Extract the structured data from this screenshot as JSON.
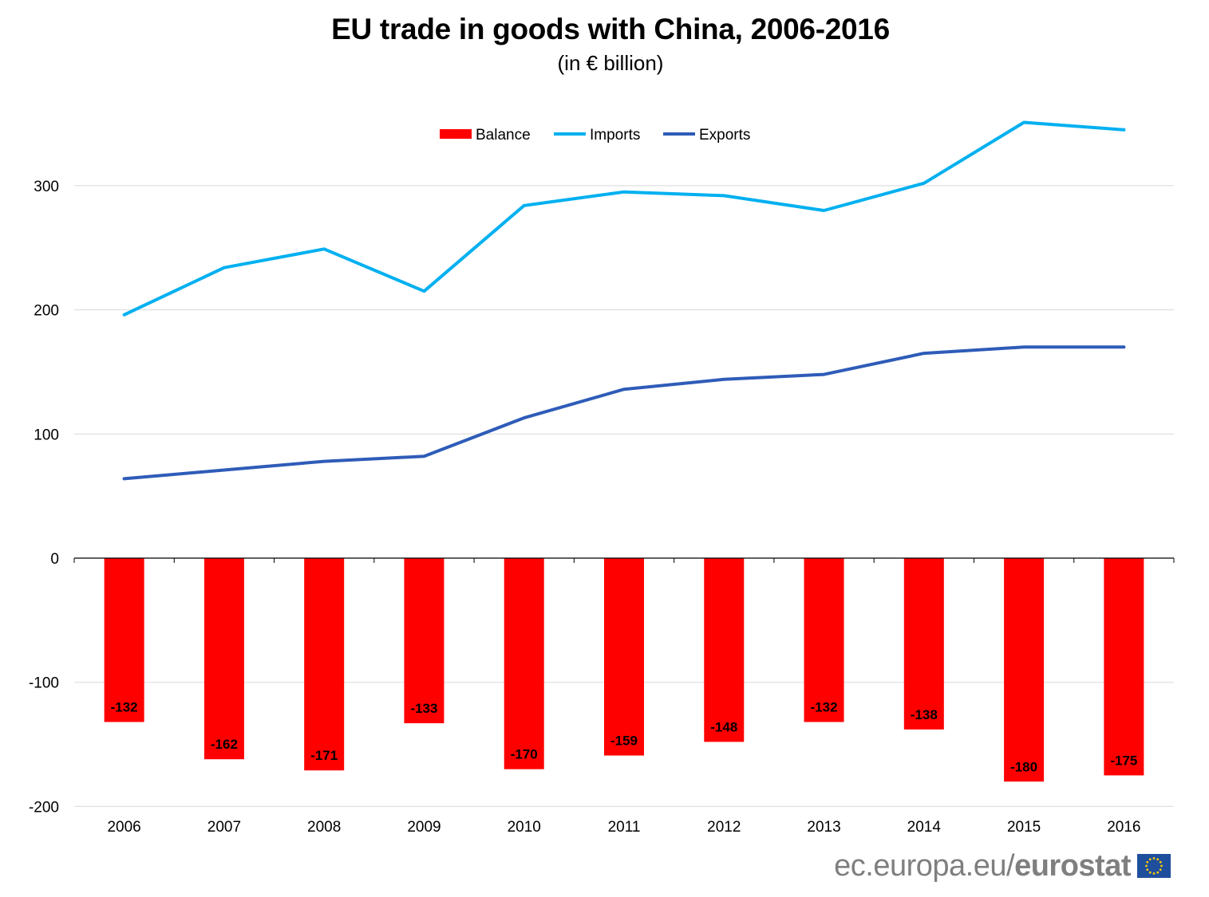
{
  "title": "EU trade in goods with China, 2006-2016",
  "subtitle": "(in € billion)",
  "footer": {
    "site": "ec.europa.eu/",
    "brand": "eurostat",
    "logo": "eu-flag-icon"
  },
  "colors": {
    "balance": "#ff0000",
    "imports": "#00b0f0",
    "exports": "#2e5cb8",
    "grid": "#d9d9d9",
    "footer_text": "#7f7f7f",
    "flag_blue": "#1f4e9c",
    "flag_stars": "#ffcc00"
  },
  "chart_data": {
    "type": "bar",
    "title": "EU trade in goods with China, 2006-2016",
    "subtitle": "(in € billion)",
    "categories": [
      "2006",
      "2007",
      "2008",
      "2009",
      "2010",
      "2011",
      "2012",
      "2013",
      "2014",
      "2015",
      "2016"
    ],
    "ylim": [
      -200,
      350
    ],
    "yticks": [
      300,
      200,
      100,
      0,
      -100,
      -200
    ],
    "grid": true,
    "legend_position": "top",
    "series": [
      {
        "name": "Balance",
        "type": "bar",
        "color": "#ff0000",
        "values": [
          -132,
          -162,
          -171,
          -133,
          -170,
          -159,
          -148,
          -132,
          -138,
          -180,
          -175
        ],
        "labels": [
          "-132",
          "-162",
          "-171",
          "-133",
          "-170",
          "-159",
          "-148",
          "-132",
          "-138",
          "-180",
          "-175"
        ]
      },
      {
        "name": "Imports",
        "type": "line",
        "color": "#00b0f0",
        "values": [
          196,
          234,
          249,
          215,
          284,
          295,
          292,
          280,
          302,
          351,
          345
        ]
      },
      {
        "name": "Exports",
        "type": "line",
        "color": "#2e5cb8",
        "values": [
          64,
          71,
          78,
          82,
          113,
          136,
          144,
          148,
          165,
          170,
          170
        ]
      }
    ]
  }
}
